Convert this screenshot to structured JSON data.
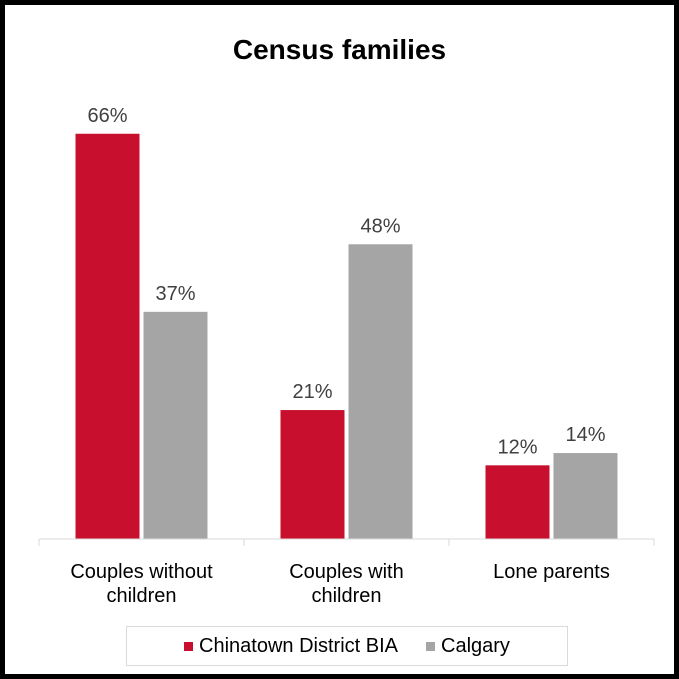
{
  "chart_data": {
    "type": "bar",
    "title": "Census families",
    "categories": [
      [
        "Couples without",
        "children"
      ],
      [
        "Couples with",
        "children"
      ],
      [
        "Lone parents"
      ]
    ],
    "series": [
      {
        "name": "Chinatown District BIA",
        "color": "#c8102e",
        "values": [
          66,
          21,
          12
        ],
        "labels": [
          "66%",
          "21%",
          "12%"
        ]
      },
      {
        "name": "Calgary",
        "color": "#a5a5a5",
        "values": [
          37,
          48,
          14
        ],
        "labels": [
          "37%",
          "48%",
          "14%"
        ]
      }
    ],
    "ylim": [
      0,
      70
    ],
    "grid": false,
    "legend_position": "bottom"
  }
}
